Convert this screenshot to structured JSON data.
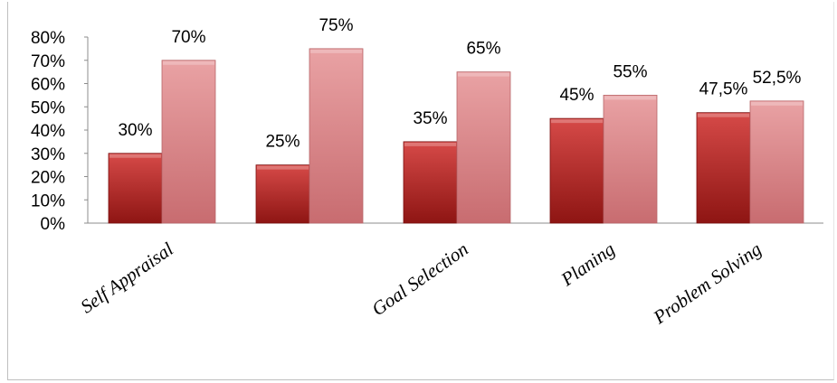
{
  "colors": {
    "series1_top": "#d64a48",
    "series1_bottom": "#8e1513",
    "series2_top": "#e9a2a4",
    "series2_bottom": "#c86c70",
    "axis": "#8c8c8c"
  },
  "chart_data": {
    "type": "bar",
    "title": "",
    "xlabel": "",
    "ylabel": "",
    "ylim": [
      0,
      80
    ],
    "y_tick_step": 10,
    "y_ticks": [
      "0%",
      "10%",
      "20%",
      "30%",
      "40%",
      "50%",
      "60%",
      "70%",
      "80%"
    ],
    "grid": false,
    "legend": "none",
    "categories": [
      "Self Appraisal",
      "",
      "Goal Selection",
      "Planing",
      "Problem Solving"
    ],
    "series": [
      {
        "values": [
          30,
          25,
          35,
          45,
          47.5
        ],
        "labels": [
          "30%",
          "25%",
          "35%",
          "45%",
          "47,5%"
        ]
      },
      {
        "values": [
          70,
          75,
          65,
          55,
          52.5
        ],
        "labels": [
          "70%",
          "75%",
          "65%",
          "55%",
          "52,5%"
        ]
      }
    ]
  }
}
